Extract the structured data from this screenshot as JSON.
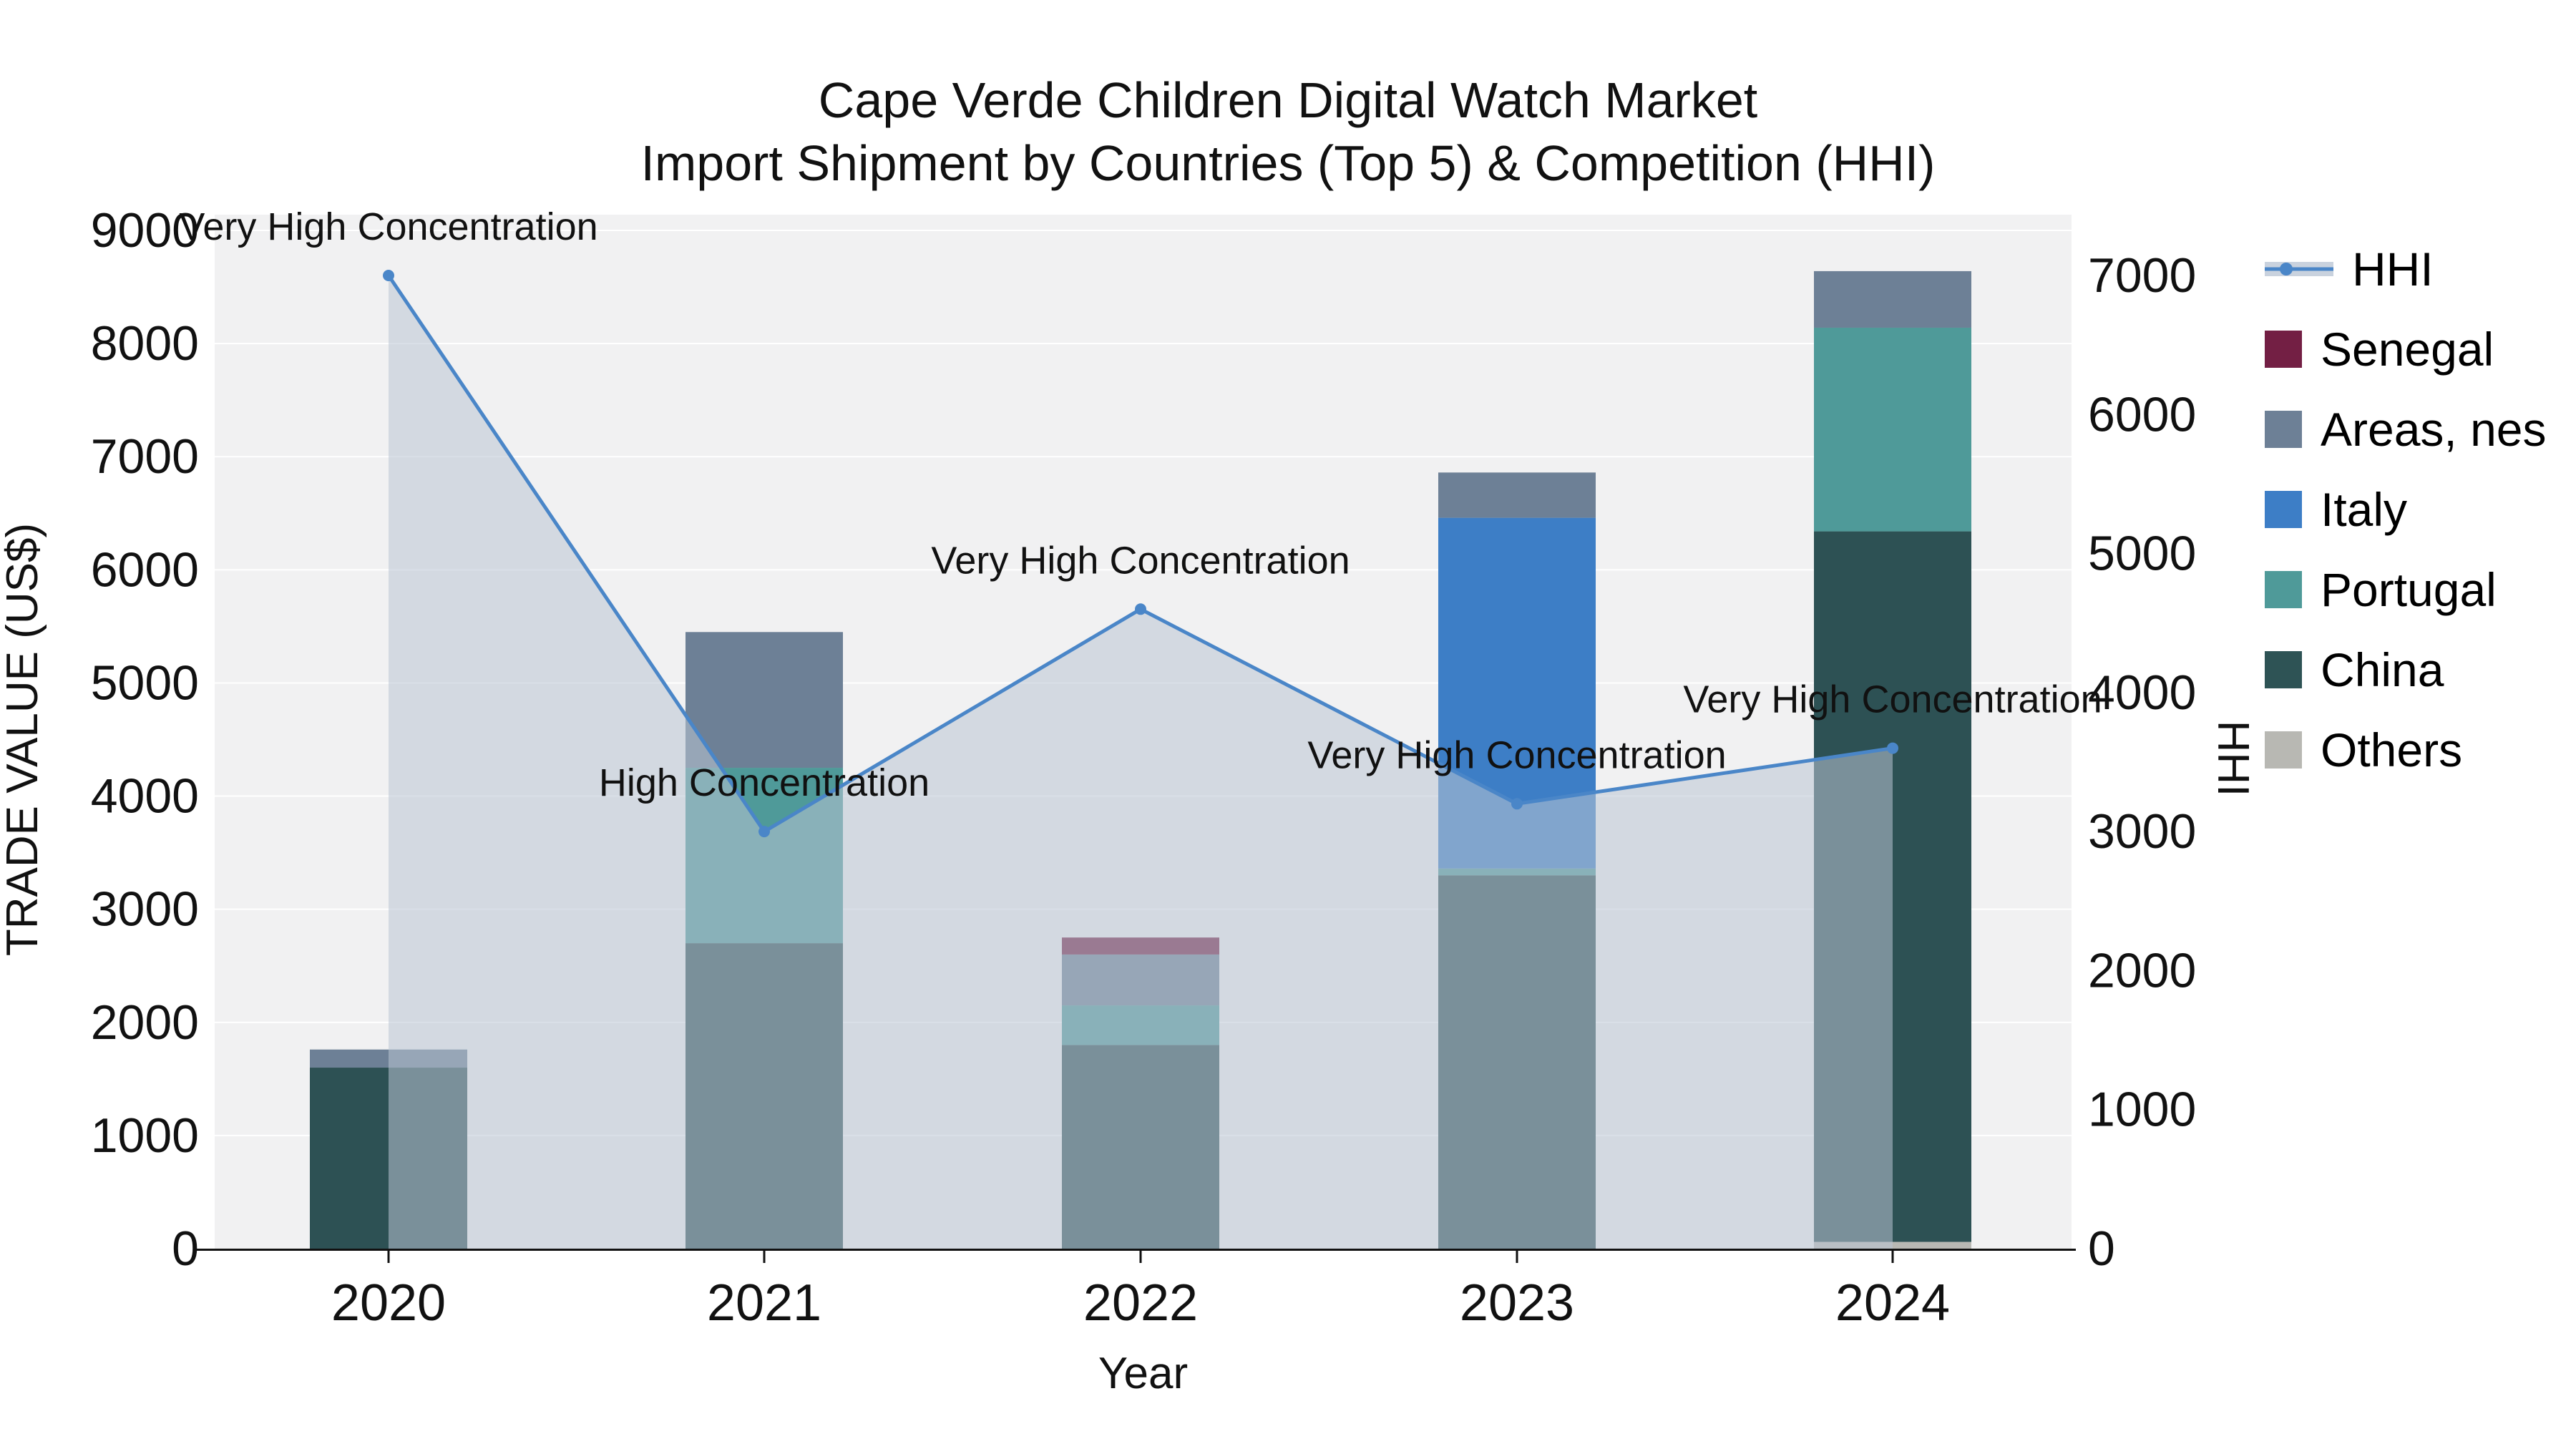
{
  "title": {
    "line1": "Cape Verde Children Digital Watch Market",
    "line2": "Import Shipment by Countries (Top 5) & Competition (HHI)"
  },
  "axes": {
    "x_label": "Year",
    "left_label": "TRADE VALUE (US$)",
    "right_label": "HHI",
    "left_ticks": [
      "0",
      "1000",
      "2000",
      "3000",
      "4000",
      "5000",
      "6000",
      "7000",
      "8000",
      "9000"
    ],
    "right_ticks": [
      "0",
      "1000",
      "2000",
      "3000",
      "4000",
      "5000",
      "6000",
      "7000"
    ],
    "x_ticks": [
      "2020",
      "2021",
      "2022",
      "2023",
      "2024"
    ]
  },
  "legend": {
    "items": [
      {
        "label": "HHI",
        "type": "line",
        "color": "#4a86c8",
        "band": "#c9d2de"
      },
      {
        "label": "Senegal",
        "type": "swatch",
        "color": "#731f44"
      },
      {
        "label": "Areas, nes",
        "type": "swatch",
        "color": "#6d8096"
      },
      {
        "label": "Italy",
        "type": "swatch",
        "color": "#3d7ec6"
      },
      {
        "label": "Portugal",
        "type": "swatch",
        "color": "#4f9a99"
      },
      {
        "label": "China",
        "type": "swatch",
        "color": "#2e5355"
      },
      {
        "label": "Others",
        "type": "swatch",
        "color": "#b8b8b3"
      }
    ]
  },
  "chart_data": [
    {
      "type": "bar",
      "stacked": true,
      "title": "Cape Verde Children Digital Watch Market — Import Shipment by Countries (Top 5)",
      "xlabel": "Year",
      "ylabel": "TRADE VALUE (US$)",
      "ylim": [
        0,
        9000
      ],
      "grid": true,
      "categories": [
        "2020",
        "2021",
        "2022",
        "2023",
        "2024"
      ],
      "series": [
        {
          "name": "Others",
          "color": "#b8b8b3",
          "values": [
            0,
            0,
            0,
            0,
            60
          ]
        },
        {
          "name": "China",
          "color": "#2d5154",
          "values": [
            1600,
            2700,
            1800,
            3300,
            6280
          ]
        },
        {
          "name": "Portugal",
          "color": "#4f9a99",
          "values": [
            0,
            1550,
            350,
            60,
            1800
          ]
        },
        {
          "name": "Italy",
          "color": "#3d7ec6",
          "values": [
            0,
            0,
            0,
            3100,
            0
          ]
        },
        {
          "name": "Areas, nes",
          "color": "#6d8096",
          "values": [
            160,
            1200,
            450,
            400,
            500
          ]
        },
        {
          "name": "Senegal",
          "color": "#731f44",
          "values": [
            0,
            0,
            150,
            0,
            0
          ]
        }
      ]
    },
    {
      "type": "line",
      "name": "HHI",
      "ylabel": "HHI",
      "ylim": [
        0,
        7200
      ],
      "color": "#4a86c8",
      "area_fill": "#b9c4d3",
      "x": [
        "2020",
        "2021",
        "2022",
        "2023",
        "2024"
      ],
      "values": [
        7000,
        3000,
        4600,
        3200,
        3600
      ],
      "annotations": [
        "Very High Concentration",
        "High Concentration",
        "Very High Concentration",
        "Very High Concentration",
        "Very High Concentration"
      ],
      "legend_position": "right"
    }
  ]
}
